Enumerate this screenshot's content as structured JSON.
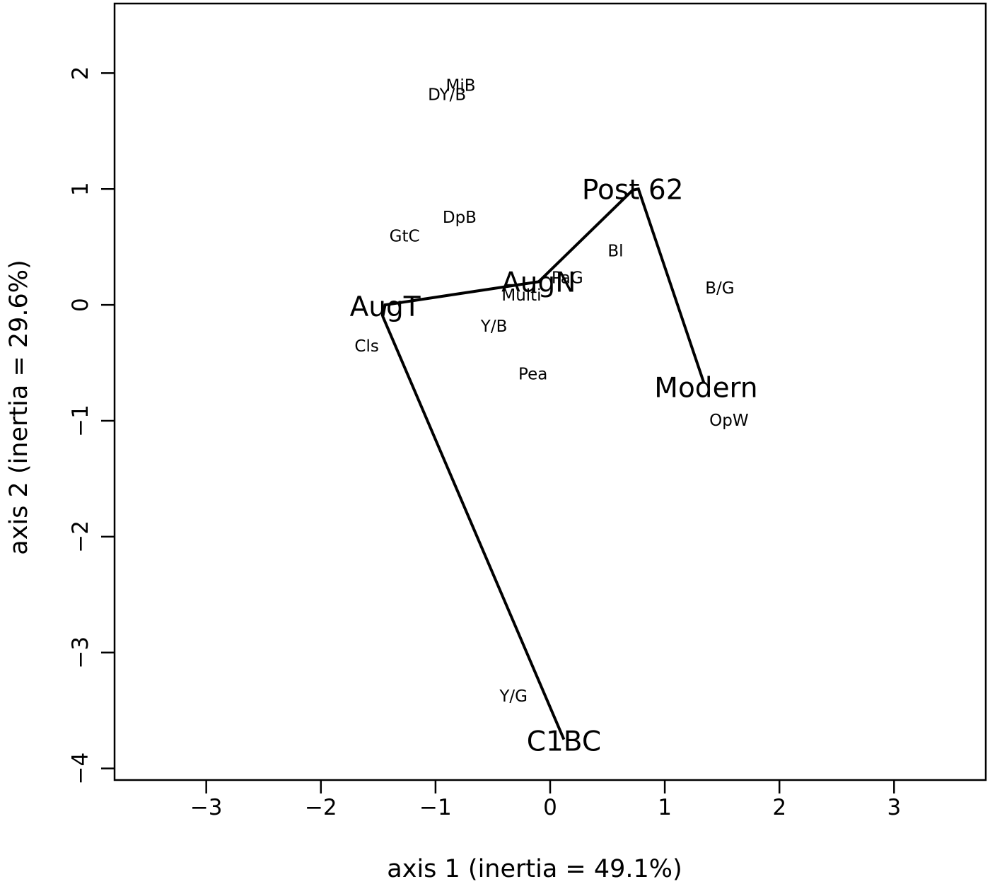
{
  "chart_data": {
    "type": "scatter",
    "title": "",
    "xlabel": "axis 1 (inertia = 49.1%)",
    "ylabel": "axis 2 (inertia = 29.6%)",
    "xlim": [
      -3.8,
      3.8
    ],
    "ylim": [
      -4.1,
      2.6
    ],
    "xticks": [
      -3,
      -2,
      -1,
      0,
      1,
      2,
      3
    ],
    "yticks": [
      -4,
      -3,
      -2,
      -1,
      0,
      1,
      2
    ],
    "xtick_labels": [
      "−3",
      "−2",
      "−1",
      "0",
      "1",
      "2",
      "3"
    ],
    "ytick_labels": [
      "−4",
      "−3",
      "−2",
      "−1",
      "0",
      "1",
      "2"
    ],
    "grid": false,
    "legend": "none",
    "line_color": "#000000",
    "categories": [
      {
        "label": "MiB",
        "x": -0.78,
        "y": 1.89
      },
      {
        "label": "DY/B",
        "x": -0.9,
        "y": 1.81
      },
      {
        "label": "DpB",
        "x": -0.79,
        "y": 0.75
      },
      {
        "label": "GtC",
        "x": -1.27,
        "y": 0.59
      },
      {
        "label": "Bl",
        "x": 0.57,
        "y": 0.46
      },
      {
        "label": "PaG",
        "x": 0.15,
        "y": 0.23
      },
      {
        "label": "B/G",
        "x": 1.48,
        "y": 0.14
      },
      {
        "label": "Multi",
        "x": -0.25,
        "y": 0.08
      },
      {
        "label": "Y/B",
        "x": -0.49,
        "y": -0.19
      },
      {
        "label": "Cls",
        "x": -1.6,
        "y": -0.36
      },
      {
        "label": "Pea",
        "x": -0.15,
        "y": -0.6
      },
      {
        "label": "OpW",
        "x": 1.56,
        "y": -1.0
      },
      {
        "label": "Y/G",
        "x": -0.32,
        "y": -3.38
      }
    ],
    "periods": [
      {
        "label": "C1BC",
        "x": 0.12,
        "y": -3.77
      },
      {
        "label": "AugT",
        "x": -1.44,
        "y": -0.02
      },
      {
        "label": "AugN",
        "x": -0.1,
        "y": 0.19
      },
      {
        "label": "Post 62",
        "x": 0.72,
        "y": 0.99
      },
      {
        "label": "Modern",
        "x": 1.36,
        "y": -0.72
      }
    ],
    "path": [
      {
        "x": 0.12,
        "y": -3.75
      },
      {
        "x": -1.46,
        "y": -0.1
      },
      {
        "x": -1.44,
        "y": 0.0
      },
      {
        "x": -0.1,
        "y": 0.2
      },
      {
        "x": 0.72,
        "y": 0.99
      },
      {
        "x": 0.77,
        "y": 1.0
      },
      {
        "x": 1.34,
        "y": -0.67
      }
    ]
  }
}
